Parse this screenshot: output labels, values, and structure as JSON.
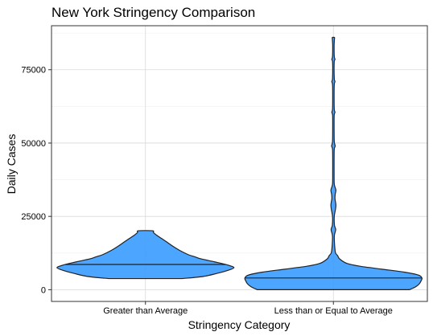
{
  "chart_data": {
    "type": "violin",
    "title": "New York Stringency Comparison",
    "xlabel": "Stringency Category",
    "ylabel": "Daily Cases",
    "categories": [
      "Greater than Average",
      "Less than or Equal to Average"
    ],
    "ylim": [
      -4000,
      90000
    ],
    "yticks": [
      0,
      25000,
      50000,
      75000
    ],
    "ytick_labels": [
      "0",
      "25000",
      "50000",
      "75000"
    ],
    "grid": true,
    "fill_color": "#3399ff",
    "outline_color": "#222222",
    "violins": [
      {
        "category": "Greater than Average",
        "median": 8600,
        "profile": [
          [
            3800,
            0.42
          ],
          [
            4500,
            0.65
          ],
          [
            5500,
            0.8
          ],
          [
            6500,
            0.92
          ],
          [
            7500,
            1.0
          ],
          [
            8500,
            0.92
          ],
          [
            9500,
            0.78
          ],
          [
            10500,
            0.63
          ],
          [
            11200,
            0.56
          ],
          [
            12000,
            0.48
          ],
          [
            13500,
            0.38
          ],
          [
            15000,
            0.3
          ],
          [
            16500,
            0.23
          ],
          [
            17500,
            0.18
          ],
          [
            18500,
            0.13
          ],
          [
            19500,
            0.09
          ],
          [
            20100,
            0.08
          ]
        ]
      },
      {
        "category": "Less than or Equal to Average",
        "median": 4000,
        "profile": [
          [
            0,
            0.86
          ],
          [
            1000,
            0.93
          ],
          [
            2000,
            0.97
          ],
          [
            3000,
            0.99
          ],
          [
            4000,
            1.0
          ],
          [
            5000,
            0.96
          ],
          [
            6000,
            0.8
          ],
          [
            7000,
            0.55
          ],
          [
            8000,
            0.3
          ],
          [
            9000,
            0.15
          ],
          [
            10500,
            0.07
          ],
          [
            11500,
            0.05
          ],
          [
            12500,
            0.025
          ],
          [
            14000,
            0.017
          ],
          [
            16000,
            0.012
          ],
          [
            18000,
            0.01
          ],
          [
            19000,
            0.014
          ],
          [
            20500,
            0.026
          ],
          [
            22000,
            0.012
          ],
          [
            25000,
            0.01
          ],
          [
            27500,
            0.024
          ],
          [
            29000,
            0.028
          ],
          [
            31000,
            0.018
          ],
          [
            32500,
            0.02
          ],
          [
            34000,
            0.028
          ],
          [
            36000,
            0.01
          ],
          [
            40000,
            0.008
          ],
          [
            45000,
            0.008
          ],
          [
            48000,
            0.01
          ],
          [
            49000,
            0.02
          ],
          [
            50500,
            0.01
          ],
          [
            55000,
            0.008
          ],
          [
            59500,
            0.009
          ],
          [
            60500,
            0.018
          ],
          [
            61500,
            0.01
          ],
          [
            66000,
            0.008
          ],
          [
            70000,
            0.01
          ],
          [
            71000,
            0.018
          ],
          [
            72000,
            0.01
          ],
          [
            77500,
            0.009
          ],
          [
            78500,
            0.018
          ],
          [
            79500,
            0.01
          ],
          [
            83000,
            0.008
          ],
          [
            84500,
            0.01
          ],
          [
            85500,
            0.012
          ],
          [
            86000,
            0.012
          ]
        ]
      }
    ]
  }
}
